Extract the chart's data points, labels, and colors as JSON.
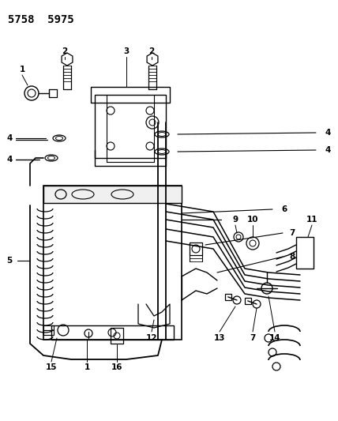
{
  "title": "5758  5975",
  "bg_color": "#ffffff",
  "line_color": "#000000",
  "title_fontsize": 10,
  "label_fontsize": 7.5,
  "fig_w": 4.28,
  "fig_h": 5.33,
  "dpi": 100
}
